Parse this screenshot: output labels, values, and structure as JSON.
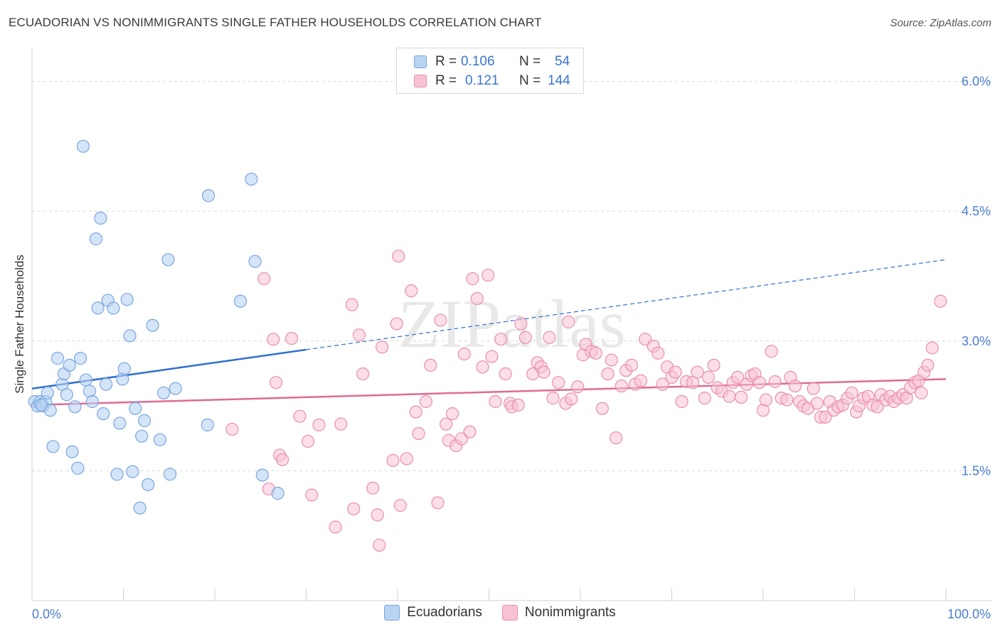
{
  "title": "ECUADORIAN VS NONIMMIGRANTS SINGLE FATHER HOUSEHOLDS CORRELATION CHART",
  "source": "Source: ZipAtlas.com",
  "watermark": "ZIPatlas",
  "colors": {
    "ecuadorians_fill": "#b9d3f3",
    "ecuadorians_stroke": "#7aa6de",
    "ecuadorians_line": "#2e6fcf",
    "nonimmigrants_fill": "#f7c3d3",
    "nonimmigrants_stroke": "#e88fac",
    "nonimmigrants_line": "#e06a94",
    "tick_text": "#4a7fd0",
    "grid": "#d9d9d9"
  },
  "legend_top": {
    "rows": [
      {
        "r_label": "R =",
        "r_value": "0.106",
        "n_label": "N =",
        "n_value": "54"
      },
      {
        "r_label": "R =",
        "r_value": "0.121",
        "n_label": "N =",
        "n_value": "144"
      }
    ]
  },
  "legend_bottom": [
    "Ecuadorians",
    "Nonimmigrants"
  ],
  "chart_data": {
    "type": "scatter",
    "title": "ECUADORIAN VS NONIMMIGRANTS SINGLE FATHER HOUSEHOLDS CORRELATION CHART",
    "xlabel": "",
    "ylabel": "Single Father Households",
    "xlim": [
      0,
      100
    ],
    "ylim": [
      0,
      6.3
    ],
    "x_tick_labels": [
      "0.0%",
      "100.0%"
    ],
    "y_ticks": [
      1.5,
      3.0,
      4.5,
      6.0
    ],
    "y_tick_labels": [
      "1.5%",
      "3.0%",
      "4.5%",
      "6.0%"
    ],
    "grid": "horizontal dashed",
    "legend": "top-center and bottom-center",
    "series": [
      {
        "name": "Ecuadorians",
        "r": 0.106,
        "n": 54,
        "trend": {
          "x0": 0,
          "y0": 2.45,
          "x1": 30,
          "y1": 2.9,
          "x_dash_end": 100,
          "y_dash_end": 3.94
        },
        "points": [
          [
            0.3,
            2.3
          ],
          [
            0.6,
            2.25
          ],
          [
            0.9,
            2.3
          ],
          [
            1.2,
            2.25
          ],
          [
            1.5,
            2.3
          ],
          [
            1.7,
            2.4
          ],
          [
            2.0,
            2.2
          ],
          [
            2.3,
            1.78
          ],
          [
            2.8,
            2.8
          ],
          [
            3.3,
            2.5
          ],
          [
            3.5,
            2.62
          ],
          [
            3.8,
            2.38
          ],
          [
            4.1,
            2.72
          ],
          [
            4.4,
            1.72
          ],
          [
            4.7,
            2.24
          ],
          [
            5.0,
            1.53
          ],
          [
            5.3,
            2.8
          ],
          [
            5.6,
            5.25
          ],
          [
            5.9,
            2.55
          ],
          [
            6.3,
            2.42
          ],
          [
            6.6,
            2.3
          ],
          [
            7.0,
            4.18
          ],
          [
            7.2,
            3.38
          ],
          [
            7.5,
            4.42
          ],
          [
            7.8,
            2.16
          ],
          [
            8.1,
            2.5
          ],
          [
            8.3,
            3.47
          ],
          [
            8.9,
            3.38
          ],
          [
            9.3,
            1.46
          ],
          [
            9.6,
            2.05
          ],
          [
            9.9,
            2.56
          ],
          [
            10.1,
            2.68
          ],
          [
            10.4,
            3.48
          ],
          [
            10.7,
            3.06
          ],
          [
            11.0,
            1.49
          ],
          [
            11.3,
            2.22
          ],
          [
            11.8,
            1.07
          ],
          [
            12.0,
            1.9
          ],
          [
            12.3,
            2.08
          ],
          [
            12.7,
            1.34
          ],
          [
            13.2,
            3.18
          ],
          [
            14.0,
            1.86
          ],
          [
            14.4,
            2.4
          ],
          [
            14.9,
            3.94
          ],
          [
            15.1,
            1.46
          ],
          [
            15.7,
            2.45
          ],
          [
            19.3,
            4.68
          ],
          [
            19.2,
            2.03
          ],
          [
            22.8,
            3.46
          ],
          [
            24.0,
            4.87
          ],
          [
            24.4,
            3.92
          ],
          [
            25.2,
            1.45
          ],
          [
            26.9,
            1.24
          ],
          [
            1.0,
            2.26
          ]
        ]
      },
      {
        "name": "Nonimmigrants",
        "r": 0.121,
        "n": 144,
        "trend": {
          "x0": 0,
          "y0": 2.26,
          "x1": 100,
          "y1": 2.56
        },
        "points": [
          [
            21.9,
            1.98
          ],
          [
            25.4,
            3.72
          ],
          [
            25.9,
            1.29
          ],
          [
            26.4,
            3.02
          ],
          [
            26.7,
            2.52
          ],
          [
            27.1,
            1.68
          ],
          [
            27.4,
            1.63
          ],
          [
            28.4,
            3.03
          ],
          [
            29.3,
            2.13
          ],
          [
            30.2,
            1.84
          ],
          [
            30.6,
            1.22
          ],
          [
            31.4,
            2.03
          ],
          [
            33.2,
            0.85
          ],
          [
            33.8,
            2.04
          ],
          [
            35.0,
            3.42
          ],
          [
            35.2,
            1.06
          ],
          [
            35.8,
            3.07
          ],
          [
            36.2,
            2.62
          ],
          [
            37.3,
            1.3
          ],
          [
            37.8,
            0.99
          ],
          [
            38.0,
            0.64
          ],
          [
            38.3,
            2.93
          ],
          [
            39.5,
            1.62
          ],
          [
            39.9,
            3.2
          ],
          [
            40.1,
            3.98
          ],
          [
            40.3,
            1.1
          ],
          [
            41.0,
            1.64
          ],
          [
            41.5,
            3.58
          ],
          [
            42.0,
            2.18
          ],
          [
            42.3,
            1.93
          ],
          [
            43.1,
            2.3
          ],
          [
            43.6,
            2.72
          ],
          [
            44.4,
            1.13
          ],
          [
            44.7,
            3.24
          ],
          [
            45.3,
            2.04
          ],
          [
            45.6,
            1.85
          ],
          [
            46.0,
            2.16
          ],
          [
            46.4,
            1.79
          ],
          [
            47.0,
            1.87
          ],
          [
            47.3,
            2.85
          ],
          [
            47.9,
            1.95
          ],
          [
            48.2,
            3.72
          ],
          [
            48.7,
            3.49
          ],
          [
            49.3,
            2.7
          ],
          [
            49.9,
            3.76
          ],
          [
            50.3,
            2.82
          ],
          [
            50.7,
            2.3
          ],
          [
            51.3,
            3.02
          ],
          [
            51.8,
            2.62
          ],
          [
            52.3,
            2.28
          ],
          [
            52.5,
            2.24
          ],
          [
            53.2,
            2.26
          ],
          [
            53.5,
            3.2
          ],
          [
            54.0,
            3.04
          ],
          [
            54.8,
            2.62
          ],
          [
            55.3,
            2.75
          ],
          [
            55.7,
            2.7
          ],
          [
            56.0,
            2.64
          ],
          [
            56.6,
            3.04
          ],
          [
            57.0,
            2.34
          ],
          [
            57.6,
            2.52
          ],
          [
            58.4,
            2.28
          ],
          [
            58.7,
            3.22
          ],
          [
            59.0,
            2.33
          ],
          [
            59.7,
            2.47
          ],
          [
            60.3,
            2.84
          ],
          [
            60.6,
            2.96
          ],
          [
            61.2,
            2.88
          ],
          [
            61.7,
            2.86
          ],
          [
            62.4,
            2.22
          ],
          [
            63.0,
            2.62
          ],
          [
            63.4,
            2.78
          ],
          [
            63.9,
            1.88
          ],
          [
            64.5,
            2.48
          ],
          [
            65.0,
            2.66
          ],
          [
            65.6,
            2.72
          ],
          [
            66.0,
            2.5
          ],
          [
            66.6,
            2.54
          ],
          [
            67.1,
            3.02
          ],
          [
            68.0,
            2.94
          ],
          [
            68.5,
            2.86
          ],
          [
            69.0,
            2.5
          ],
          [
            69.5,
            2.7
          ],
          [
            70.0,
            2.58
          ],
          [
            70.4,
            2.64
          ],
          [
            71.1,
            2.3
          ],
          [
            71.6,
            2.53
          ],
          [
            72.3,
            2.52
          ],
          [
            72.8,
            2.64
          ],
          [
            73.6,
            2.34
          ],
          [
            74.0,
            2.58
          ],
          [
            74.6,
            2.72
          ],
          [
            75.0,
            2.46
          ],
          [
            75.5,
            2.42
          ],
          [
            76.3,
            2.36
          ],
          [
            76.7,
            2.52
          ],
          [
            77.2,
            2.58
          ],
          [
            77.6,
            2.35
          ],
          [
            78.2,
            2.5
          ],
          [
            78.7,
            2.6
          ],
          [
            79.1,
            2.62
          ],
          [
            79.6,
            2.52
          ],
          [
            80.0,
            2.2
          ],
          [
            80.3,
            2.32
          ],
          [
            80.9,
            2.88
          ],
          [
            81.3,
            2.53
          ],
          [
            82.0,
            2.34
          ],
          [
            82.6,
            2.32
          ],
          [
            83.0,
            2.58
          ],
          [
            83.5,
            2.48
          ],
          [
            84.0,
            2.3
          ],
          [
            84.4,
            2.25
          ],
          [
            84.9,
            2.22
          ],
          [
            85.5,
            2.45
          ],
          [
            85.9,
            2.28
          ],
          [
            86.3,
            2.12
          ],
          [
            86.8,
            2.12
          ],
          [
            87.3,
            2.3
          ],
          [
            87.7,
            2.2
          ],
          [
            88.2,
            2.24
          ],
          [
            88.7,
            2.26
          ],
          [
            89.2,
            2.34
          ],
          [
            89.7,
            2.4
          ],
          [
            90.2,
            2.18
          ],
          [
            90.5,
            2.25
          ],
          [
            91.0,
            2.34
          ],
          [
            91.5,
            2.36
          ],
          [
            92.0,
            2.26
          ],
          [
            92.5,
            2.24
          ],
          [
            92.9,
            2.38
          ],
          [
            93.4,
            2.32
          ],
          [
            93.9,
            2.36
          ],
          [
            94.3,
            2.3
          ],
          [
            94.8,
            2.34
          ],
          [
            95.3,
            2.38
          ],
          [
            95.7,
            2.34
          ],
          [
            96.1,
            2.46
          ],
          [
            96.6,
            2.52
          ],
          [
            97.0,
            2.54
          ],
          [
            97.3,
            2.4
          ],
          [
            97.6,
            2.64
          ],
          [
            98.0,
            2.72
          ],
          [
            98.5,
            2.92
          ],
          [
            99.4,
            3.46
          ]
        ]
      }
    ]
  }
}
